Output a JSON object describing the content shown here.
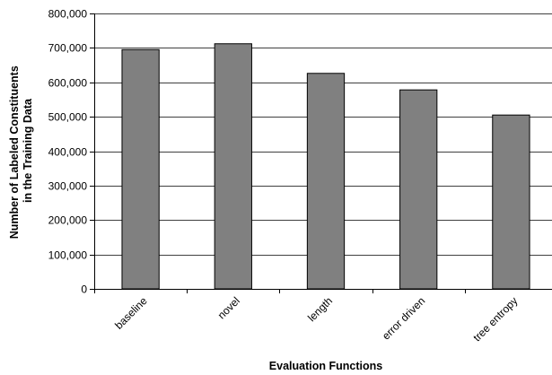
{
  "chart_data": {
    "type": "bar",
    "title": "",
    "xlabel": "Evaluation Functions",
    "ylabel_lines": [
      "Number of Labeled Constituents",
      "in the Training Data"
    ],
    "categories": [
      "baseline",
      "novel",
      "length",
      "error driven",
      "tree entropy"
    ],
    "values": [
      695000,
      712000,
      626000,
      578000,
      505000
    ],
    "ylim": [
      0,
      800000
    ],
    "yticks": [
      0,
      100000,
      200000,
      300000,
      400000,
      500000,
      600000,
      700000,
      800000
    ],
    "ytick_labels": [
      "0",
      "100,000",
      "200,000",
      "300,000",
      "400,000",
      "500,000",
      "600,000",
      "700,000",
      "800,000"
    ],
    "grid": "horizontal major",
    "legend": "none",
    "colors": {
      "bar_fill": "#808080",
      "bar_stroke": "#000000",
      "grid": "#000000",
      "axis": "#000000"
    }
  }
}
